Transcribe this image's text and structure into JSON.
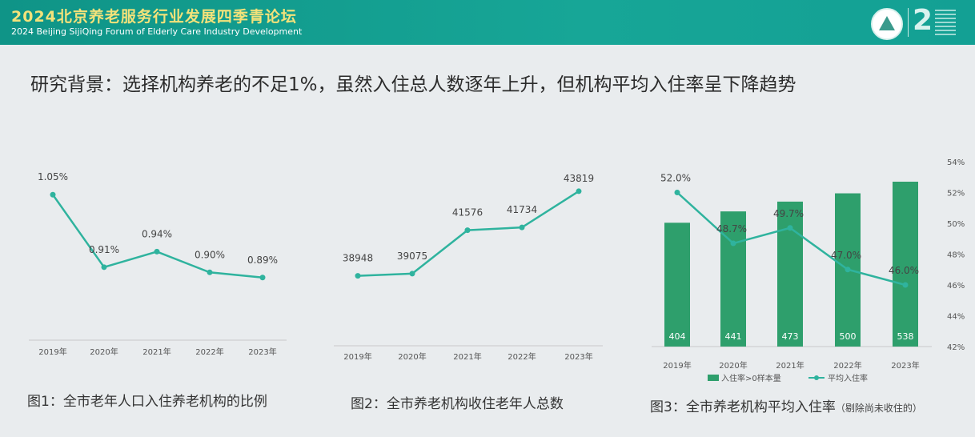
{
  "banner": {
    "title": "2024北京养老服务行业发展四季青论坛",
    "subtitle": "2024 Beijing SijiQing Forum of Elderly Care Industry Development",
    "logo_number": "2"
  },
  "headline": "研究背景：选择机构养老的不足1%，虽然入住总人数逐年上升，但机构平均入住率呈下降趋势",
  "colors": {
    "banner": "#13a094",
    "line": "#2fb39e",
    "bar": "#2e9f6c",
    "title_text": "#f3e27a"
  },
  "chart_data": [
    {
      "type": "line",
      "caption": "图1：全市老年人口入住养老机构的比例",
      "categories": [
        "2019年",
        "2020年",
        "2021年",
        "2022年",
        "2023年"
      ],
      "values": [
        1.05,
        0.91,
        0.94,
        0.9,
        0.89
      ],
      "labels": [
        "1.05%",
        "0.91%",
        "0.94%",
        "0.90%",
        "0.89%"
      ],
      "grid": false
    },
    {
      "type": "line",
      "caption": "图2：全市养老机构收住老年人总数",
      "categories": [
        "2019年",
        "2020年",
        "2021年",
        "2022年",
        "2023年"
      ],
      "values": [
        38948,
        39075,
        41576,
        41734,
        43819
      ],
      "labels": [
        "38948",
        "39075",
        "41576",
        "41734",
        "43819"
      ],
      "grid": false
    },
    {
      "type": "bar",
      "caption": "图3：全市养老机构平均入住率",
      "caption_note": "（剔除尚未收住的）",
      "categories": [
        "2019年",
        "2020年",
        "2021年",
        "2022年",
        "2023年"
      ],
      "series": [
        {
          "name": "入住率>0样本量",
          "values": [
            404,
            441,
            473,
            500,
            538
          ]
        },
        {
          "name": "平均入住率",
          "values": [
            52.0,
            48.7,
            49.7,
            47.0,
            46.0
          ],
          "labels": [
            "52.0%",
            "48.7%",
            "49.7%",
            "47.0%",
            "46.0%"
          ]
        }
      ],
      "y2_ticks": [
        "54%",
        "52%",
        "50%",
        "48%",
        "46%",
        "44%",
        "42%"
      ],
      "y2lim": [
        42,
        54
      ],
      "legend": "bottom"
    }
  ]
}
